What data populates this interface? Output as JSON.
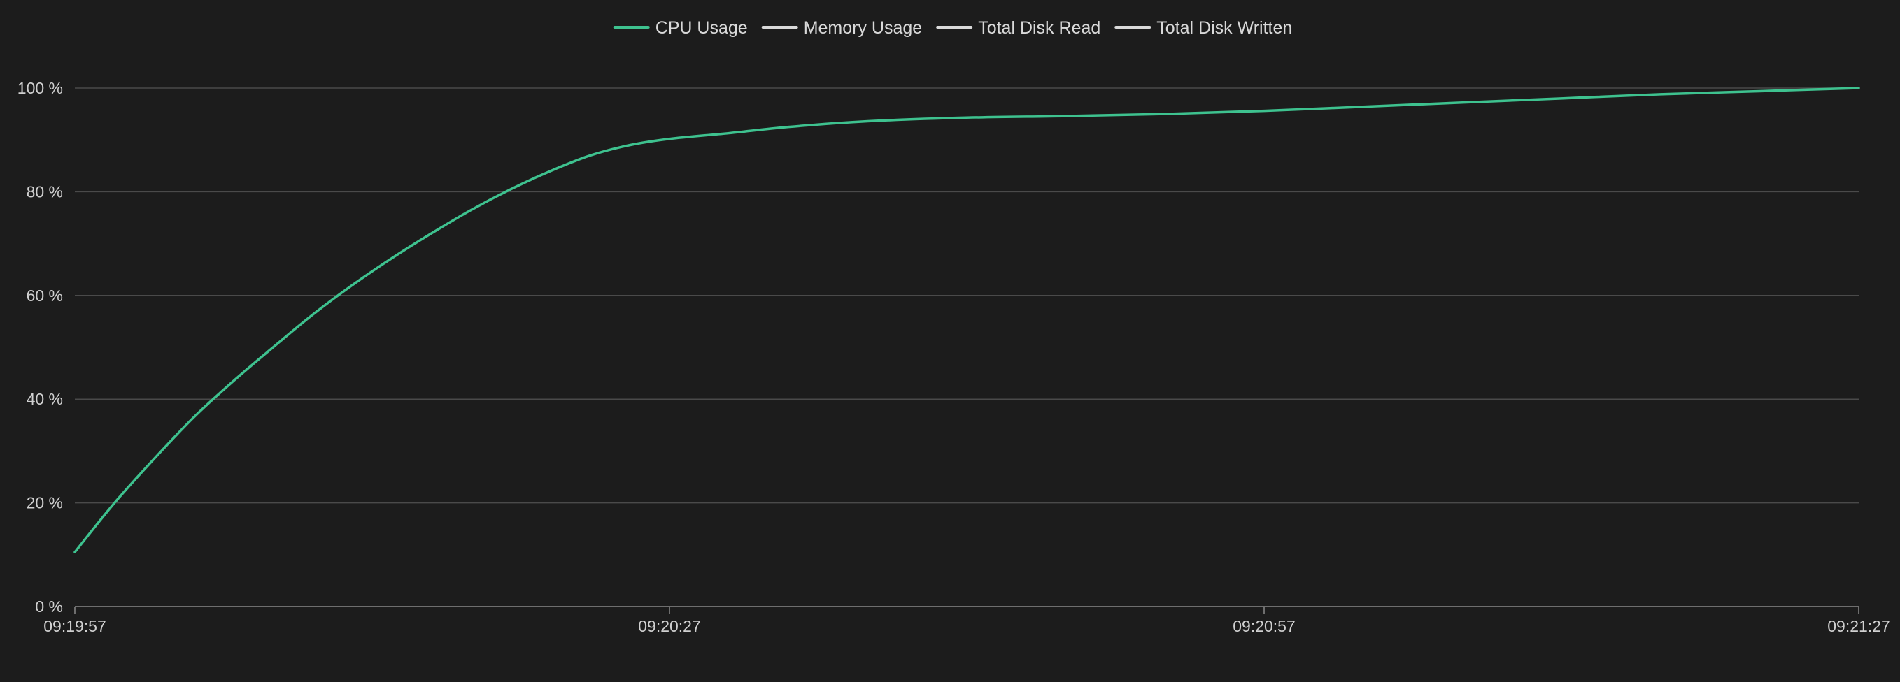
{
  "chart_data": {
    "type": "line",
    "title": "",
    "xlabel": "",
    "ylabel": "",
    "x_tick_labels": [
      "09:19:57",
      "09:20:27",
      "09:20:57",
      "09:21:27"
    ],
    "x_range_seconds": [
      0,
      90
    ],
    "y_tick_labels": [
      "0 %",
      "20 %",
      "40 %",
      "60 %",
      "80 %",
      "100 %"
    ],
    "ylim": [
      0,
      100
    ],
    "y_ticks": [
      0,
      20,
      40,
      60,
      80,
      100
    ],
    "grid": true,
    "legend_position": "top-center",
    "series": [
      {
        "name": "CPU Usage",
        "color": "#3ec28f",
        "x": [
          0,
          2,
          4,
          6,
          8,
          10,
          12,
          14,
          16,
          18,
          20,
          22,
          24,
          26,
          28,
          30,
          33,
          36,
          40,
          45,
          50,
          55,
          60,
          65,
          70,
          75,
          80,
          85,
          90
        ],
        "values": [
          10.5,
          20,
          28.5,
          36.5,
          43.5,
          50,
          56.3,
          62,
          67.2,
          72,
          76.5,
          80.5,
          84,
          87,
          89,
          90.2,
          91.3,
          92.5,
          93.6,
          94.3,
          94.6,
          95,
          95.6,
          96.4,
          97.2,
          98,
          98.8,
          99.4,
          100
        ]
      },
      {
        "name": "Memory Usage",
        "color": "#d9d9d9",
        "x": [],
        "values": []
      },
      {
        "name": "Total Disk Read",
        "color": "#d9d9d9",
        "x": [],
        "values": []
      },
      {
        "name": "Total Disk Written",
        "color": "#d9d9d9",
        "x": [],
        "values": []
      }
    ]
  }
}
